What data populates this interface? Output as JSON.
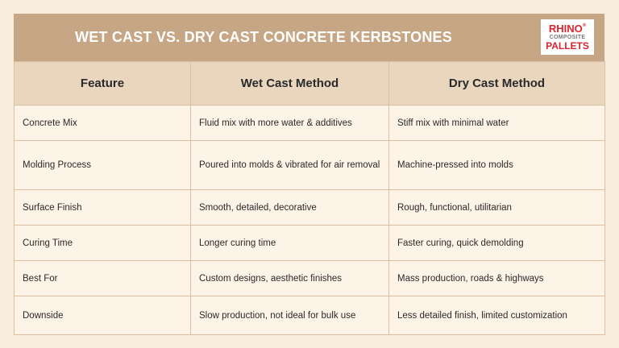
{
  "header": {
    "title": "WET CAST VS. DRY CAST CONCRETE KERBSTONES"
  },
  "logo": {
    "line1": "RHINO",
    "mark": "®",
    "line2": "COMPOSITE",
    "line3": "PALLETS"
  },
  "table": {
    "columns": [
      "Feature",
      "Wet Cast Method",
      "Dry Cast Method"
    ],
    "rows": [
      [
        "Concrete Mix",
        "Fluid mix with more water & additives",
        "Stiff mix with minimal water"
      ],
      [
        "Molding Process",
        "Poured into molds & vibrated for air removal",
        "Machine-pressed into molds"
      ],
      [
        "Surface Finish",
        "Smooth, detailed, decorative",
        "Rough, functional, utilitarian"
      ],
      [
        "Curing Time",
        "Longer curing time",
        "Faster curing, quick demolding"
      ],
      [
        "Best For",
        "Custom designs, aesthetic finishes",
        "Mass production, roads & highways"
      ],
      [
        "Downside",
        "Slow production, not ideal for bulk use",
        "Less detailed finish, limited customization"
      ]
    ]
  }
}
